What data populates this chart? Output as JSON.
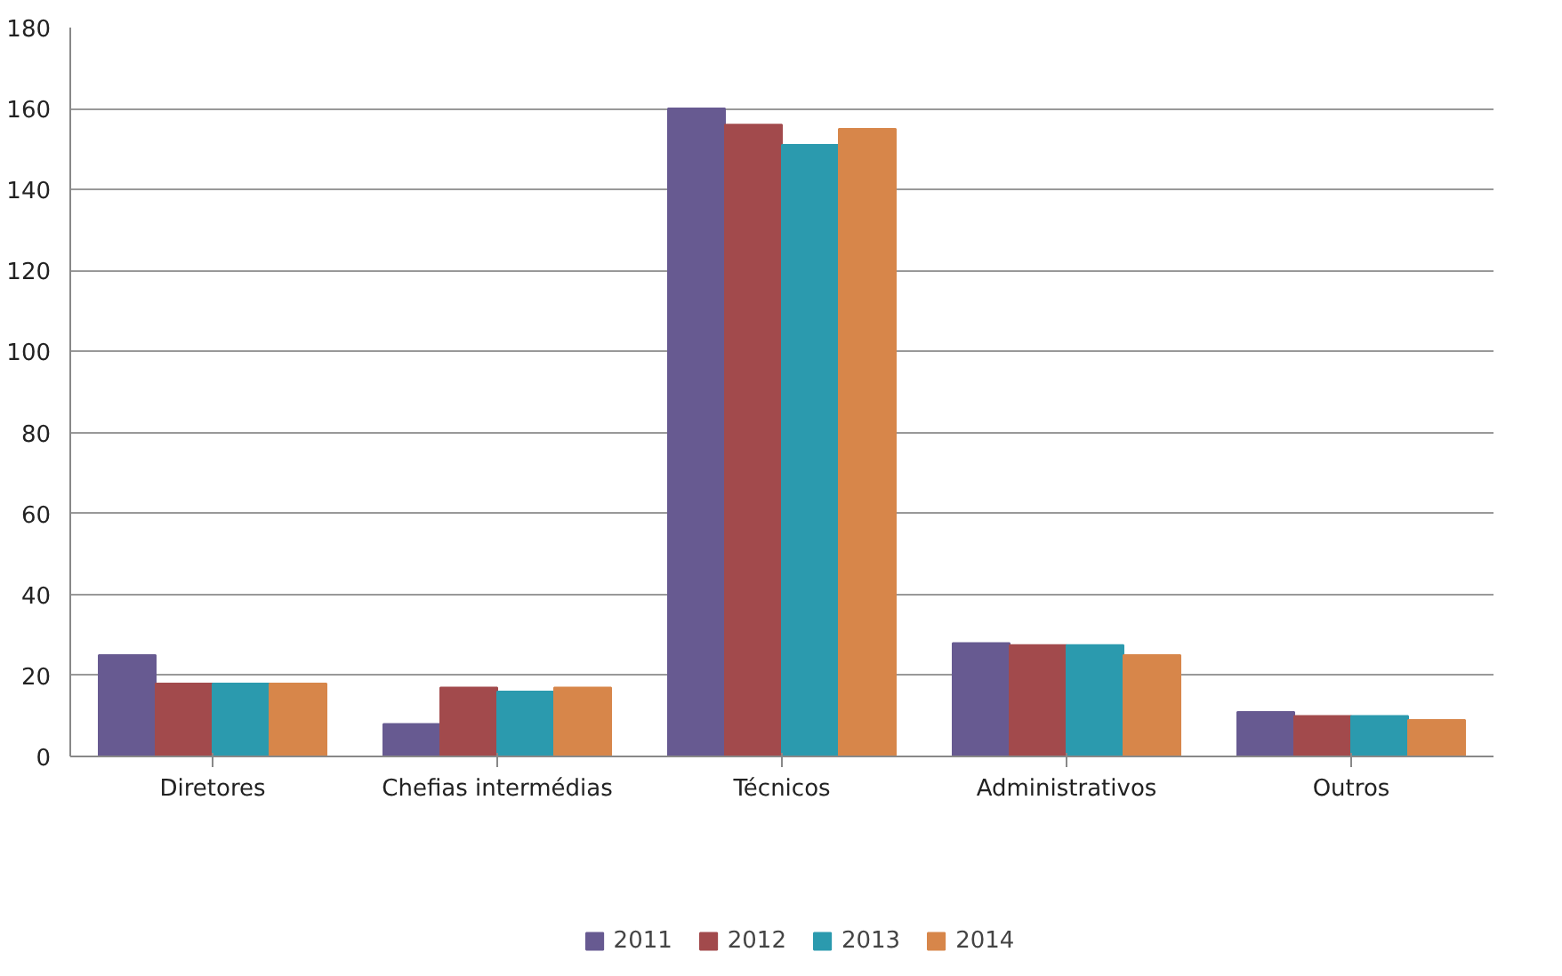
{
  "chart_data": {
    "type": "bar",
    "categories": [
      "Diretores",
      "Chefias intermédias",
      "Técnicos",
      "Administrativos",
      "Outros"
    ],
    "series": [
      {
        "name": "2011",
        "color": "#675a91",
        "values": [
          25,
          8,
          160,
          28,
          11
        ]
      },
      {
        "name": "2012",
        "color": "#a24a4c",
        "values": [
          18,
          17,
          156,
          27.5,
          10
        ]
      },
      {
        "name": "2013",
        "color": "#2b9aae",
        "values": [
          18,
          16,
          151,
          27.5,
          10
        ]
      },
      {
        "name": "2014",
        "color": "#d7864a",
        "values": [
          18,
          17,
          155,
          25,
          9
        ]
      }
    ],
    "ylim": [
      0,
      180
    ],
    "yticks": [
      0,
      20,
      40,
      60,
      80,
      100,
      120,
      140,
      160,
      180
    ],
    "grid": "y",
    "legend": "bottom"
  }
}
